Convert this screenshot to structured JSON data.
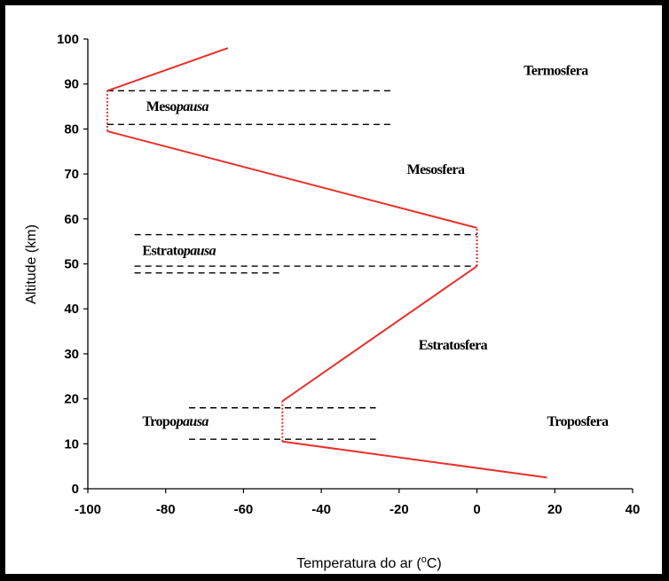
{
  "chart_data": {
    "type": "line",
    "title": "",
    "xlabel": "Temperatura do ar (",
    "xlabel_sup": "o",
    "xlabel_unit": "C)",
    "ylabel": "Altitude (km)",
    "xlim": [
      -100,
      40
    ],
    "ylim": [
      0,
      100
    ],
    "xticks": [
      -100,
      -80,
      -60,
      -40,
      -20,
      0,
      20,
      40
    ],
    "yticks": [
      0,
      10,
      20,
      30,
      40,
      50,
      60,
      70,
      80,
      90,
      100
    ],
    "grid": false,
    "legend": "none",
    "line_color": "#e8302b",
    "series": [
      {
        "x": [
          18,
          -50,
          -50,
          0,
          0,
          -95,
          -95,
          -64
        ],
        "y": [
          2.5,
          10.5,
          19.5,
          49.5,
          58,
          79.5,
          88.5,
          98
        ]
      }
    ],
    "pause_segments": [
      {
        "x": [
          -50,
          -50
        ],
        "y": [
          10.5,
          19.5
        ]
      },
      {
        "x": [
          0,
          0
        ],
        "y": [
          49.5,
          58
        ]
      },
      {
        "x": [
          -95,
          -95
        ],
        "y": [
          79.5,
          88.5
        ]
      }
    ],
    "boundary_lines": [
      {
        "x": [
          -95,
          -22
        ],
        "y": [
          88.5,
          88.5
        ]
      },
      {
        "x": [
          -95,
          -22
        ],
        "y": [
          81,
          81
        ]
      },
      {
        "x": [
          -88,
          0
        ],
        "y": [
          56.5,
          56.5
        ]
      },
      {
        "x": [
          -88,
          0
        ],
        "y": [
          49.5,
          49.5
        ]
      },
      {
        "x": [
          -88,
          -50
        ],
        "y": [
          48,
          48
        ]
      },
      {
        "x": [
          -74,
          -26
        ],
        "y": [
          18,
          18
        ]
      },
      {
        "x": [
          -74,
          -26
        ],
        "y": [
          11,
          11
        ]
      }
    ],
    "annotations": [
      {
        "id": "termosfera",
        "x": 12,
        "y": 92,
        "parts": [
          {
            "text": "Termosfera",
            "italic": false
          }
        ]
      },
      {
        "id": "mesopausa",
        "x": -85,
        "y": 84,
        "parts": [
          {
            "text": "Meso",
            "italic": false
          },
          {
            "text": "pausa",
            "italic": true
          }
        ]
      },
      {
        "id": "mesosfera",
        "x": -18,
        "y": 70,
        "parts": [
          {
            "text": "Mesosfera",
            "italic": false
          }
        ]
      },
      {
        "id": "estratopausa",
        "x": -86,
        "y": 52,
        "parts": [
          {
            "text": "Estrato",
            "italic": false
          },
          {
            "text": "pausa",
            "italic": true
          }
        ]
      },
      {
        "id": "estratosfera",
        "x": -15,
        "y": 31,
        "parts": [
          {
            "text": "Estratosfera",
            "italic": false
          }
        ]
      },
      {
        "id": "tropopausa",
        "x": -86,
        "y": 14,
        "parts": [
          {
            "text": "Tropo",
            "italic": false
          },
          {
            "text": "pausa",
            "italic": true
          }
        ]
      },
      {
        "id": "troposfera",
        "x": 18,
        "y": 14,
        "parts": [
          {
            "text": "Troposfera",
            "italic": false
          }
        ]
      }
    ]
  }
}
